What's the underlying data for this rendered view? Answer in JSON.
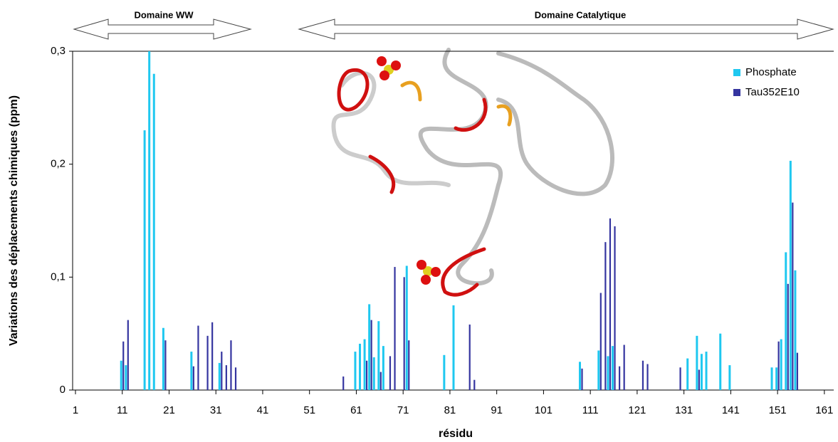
{
  "chart_data": {
    "type": "bar",
    "y_label": "Variations des déplacements chimiques (ppm)",
    "x_label": "résidu",
    "annotations": [
      "Domaine WW",
      "Domaine Catalytique"
    ],
    "xlim": [
      1,
      163
    ],
    "xticks": [
      1,
      11,
      21,
      31,
      41,
      51,
      61,
      71,
      81,
      91,
      101,
      111,
      121,
      131,
      141,
      151,
      161
    ],
    "ylim": [
      0,
      0.3
    ],
    "yticks": [
      0,
      {
        "value": 0.1,
        "label": "0,1"
      },
      {
        "value": 0.2,
        "label": "0,2"
      },
      {
        "value": 0.3,
        "label": "0,3"
      }
    ],
    "legend": "top-right",
    "series": [
      {
        "name": "Phosphate",
        "color": "#1fc8f0",
        "x": [
          11,
          12,
          16,
          17,
          18,
          20,
          26,
          32,
          61,
          62,
          63,
          64,
          65,
          66,
          67,
          72,
          80,
          82,
          109,
          113,
          115,
          116,
          132,
          134,
          135,
          136,
          139,
          141,
          150,
          151,
          152,
          153,
          154,
          155
        ],
        "values": [
          0.026,
          0.022,
          0.23,
          0.3,
          0.28,
          0.055,
          0.034,
          0.024,
          0.034,
          0.041,
          0.045,
          0.076,
          0.029,
          0.061,
          0.039,
          0.11,
          0.031,
          0.075,
          0.025,
          0.035,
          0.03,
          0.039,
          0.028,
          0.048,
          0.032,
          0.034,
          0.05,
          0.022,
          0.02,
          0.02,
          0.045,
          0.122,
          0.203,
          0.106
        ]
      },
      {
        "name": "Tau352E10",
        "color": "#3535a0",
        "x": [
          11,
          12,
          20,
          26,
          27,
          29,
          30,
          32,
          33,
          34,
          35,
          58,
          63,
          64,
          66,
          68,
          69,
          71,
          72,
          85,
          86,
          109,
          113,
          114,
          115,
          116,
          117,
          118,
          122,
          123,
          130,
          134,
          151,
          153,
          154,
          155
        ],
        "values": [
          0.043,
          0.062,
          0.044,
          0.021,
          0.057,
          0.048,
          0.06,
          0.034,
          0.022,
          0.044,
          0.02,
          0.012,
          0.026,
          0.062,
          0.016,
          0.03,
          0.109,
          0.1,
          0.044,
          0.058,
          0.009,
          0.019,
          0.086,
          0.131,
          0.152,
          0.145,
          0.021,
          0.04,
          0.026,
          0.023,
          0.02,
          0.018,
          0.043,
          0.094,
          0.166,
          0.033
        ]
      }
    ]
  }
}
